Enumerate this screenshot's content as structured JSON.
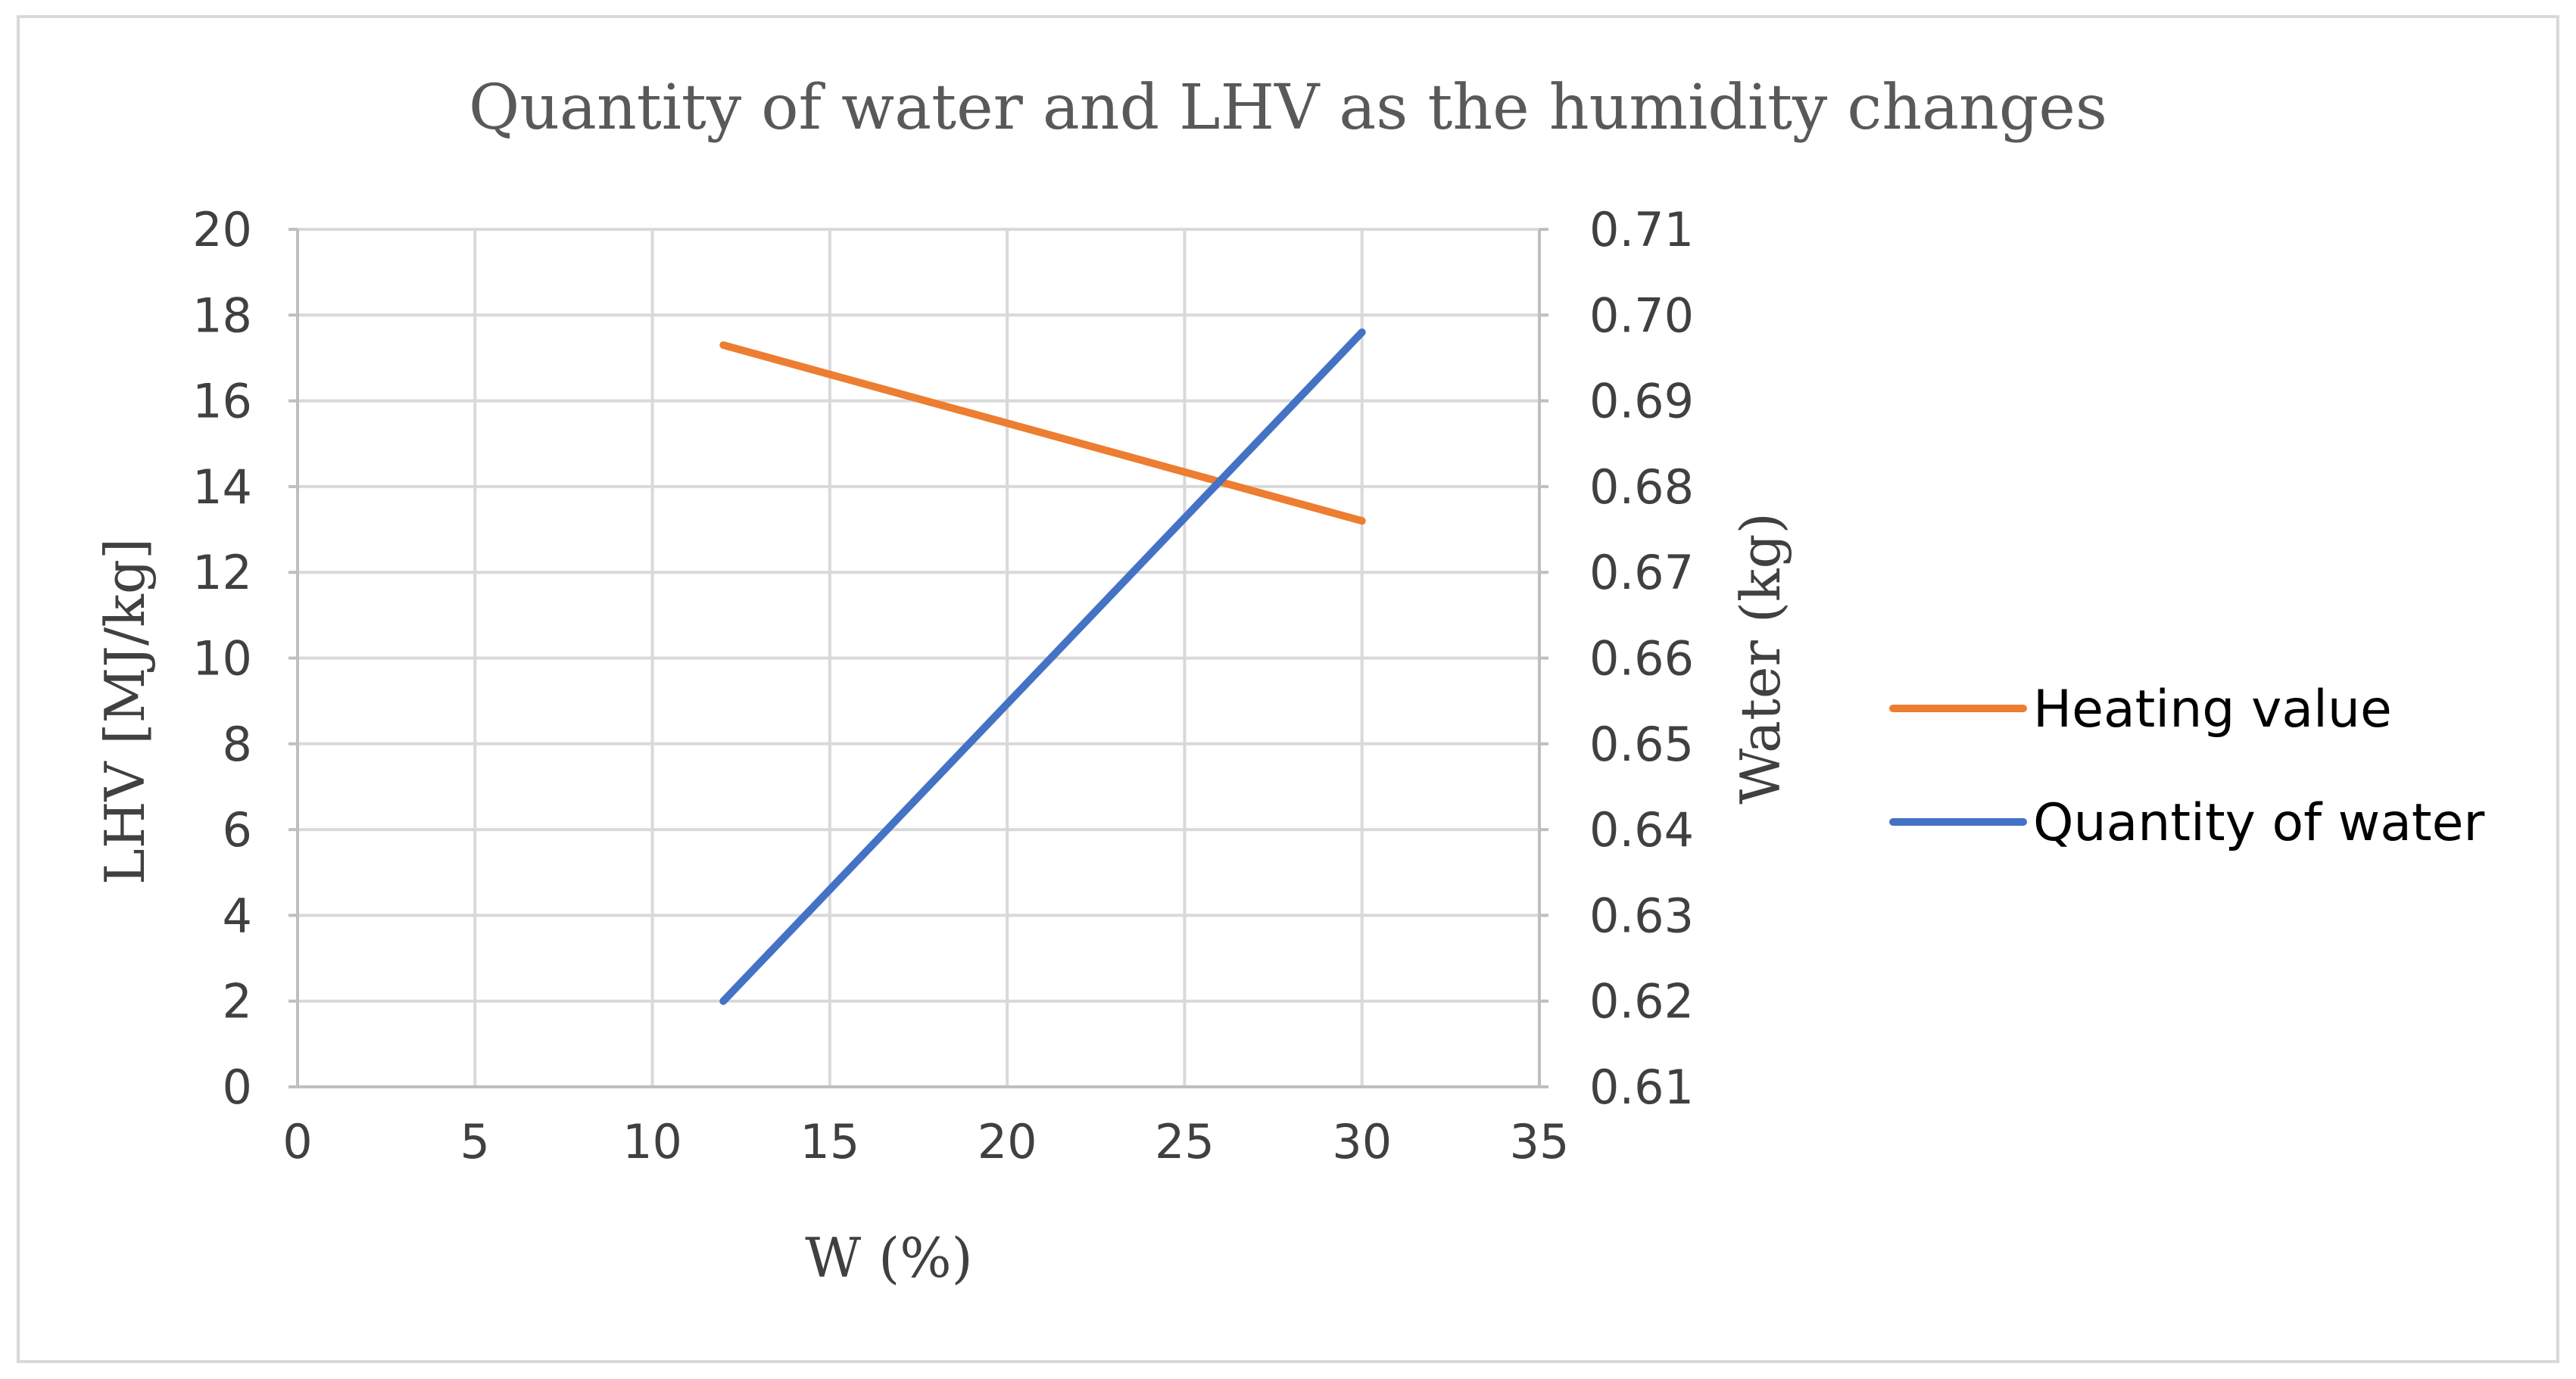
{
  "chart_data": {
    "type": "line",
    "title": "Quantity of water and LHV as the humidity changes",
    "xlabel": "W (%)",
    "ylabel": "LHV [MJ/kg]",
    "y2label": "Water (kg)",
    "xlim": [
      0,
      35
    ],
    "ylim": [
      0,
      20
    ],
    "y2lim": [
      0.61,
      0.71
    ],
    "x_ticks": [
      "0",
      "5",
      "10",
      "15",
      "20",
      "25",
      "30",
      "35"
    ],
    "y_ticks": [
      "0",
      "2",
      "4",
      "6",
      "8",
      "10",
      "12",
      "14",
      "16",
      "18",
      "20"
    ],
    "y2_ticks": [
      "0.61",
      "0.62",
      "0.63",
      "0.64",
      "0.65",
      "0.66",
      "0.67",
      "0.68",
      "0.69",
      "0.70",
      "0.71"
    ],
    "grid": true,
    "legend_position": "right",
    "series": [
      {
        "name": "Heating value",
        "axis": "left",
        "color": "#ED7D31",
        "x": [
          12,
          30
        ],
        "values": [
          17.3,
          13.2
        ]
      },
      {
        "name": "Quantity of water",
        "axis": "right",
        "color": "#4472C4",
        "x": [
          12,
          30
        ],
        "values": [
          0.62,
          0.698
        ]
      }
    ]
  }
}
